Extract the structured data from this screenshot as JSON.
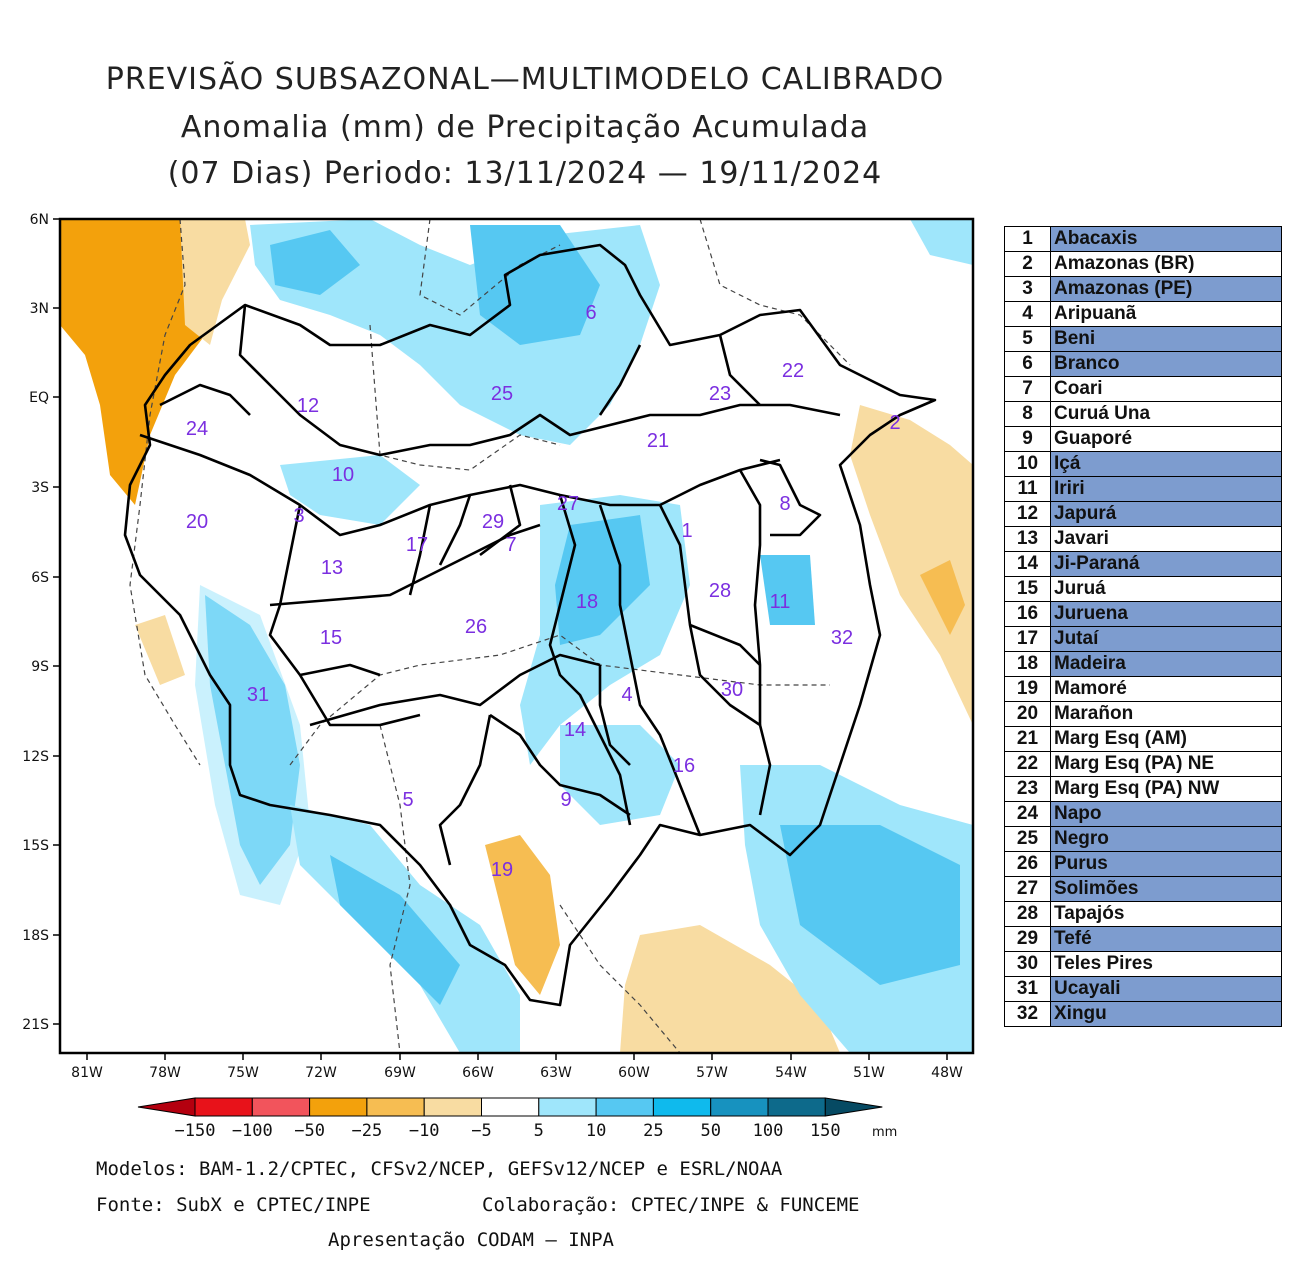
{
  "title": {
    "line1": "PREVISÃO SUBSAZONAL—MULTIMODELO CALIBRADO",
    "line2": "Anomalia (mm) de Precipitação Acumulada",
    "line3": "(07 Dias) Periodo: 13/11/2024 — 19/11/2024"
  },
  "axes": {
    "lat_labels": [
      "6N",
      "3N",
      "EQ",
      "3S",
      "6S",
      "9S",
      "12S",
      "15S",
      "18S",
      "21S"
    ],
    "lon_labels": [
      "81W",
      "78W",
      "75W",
      "72W",
      "69W",
      "66W",
      "63W",
      "60W",
      "57W",
      "54W",
      "51W",
      "48W"
    ]
  },
  "basin_numbers": [
    "1",
    "2",
    "3",
    "4",
    "5",
    "6",
    "7",
    "8",
    "9",
    "10",
    "11",
    "12",
    "13",
    "14",
    "15",
    "16",
    "17",
    "18",
    "19",
    "20",
    "21",
    "22",
    "23",
    "24",
    "25",
    "26",
    "27",
    "28",
    "29",
    "30",
    "31",
    "32"
  ],
  "basins": [
    {
      "n": "1",
      "name": "Abacaxis",
      "highlight": true
    },
    {
      "n": "2",
      "name": "Amazonas (BR)",
      "highlight": false
    },
    {
      "n": "3",
      "name": "Amazonas (PE)",
      "highlight": true
    },
    {
      "n": "4",
      "name": "Aripuanã",
      "highlight": false
    },
    {
      "n": "5",
      "name": "Beni",
      "highlight": true
    },
    {
      "n": "6",
      "name": "Branco",
      "highlight": true
    },
    {
      "n": "7",
      "name": "Coari",
      "highlight": false
    },
    {
      "n": "8",
      "name": "Curuá Una",
      "highlight": false
    },
    {
      "n": "9",
      "name": "Guaporé",
      "highlight": false
    },
    {
      "n": "10",
      "name": "Içá",
      "highlight": true
    },
    {
      "n": "11",
      "name": "Iriri",
      "highlight": true
    },
    {
      "n": "12",
      "name": "Japurá",
      "highlight": true
    },
    {
      "n": "13",
      "name": "Javari",
      "highlight": false
    },
    {
      "n": "14",
      "name": "Ji-Paraná",
      "highlight": true
    },
    {
      "n": "15",
      "name": "Juruá",
      "highlight": false
    },
    {
      "n": "16",
      "name": "Juruena",
      "highlight": true
    },
    {
      "n": "17",
      "name": "Jutaí",
      "highlight": true
    },
    {
      "n": "18",
      "name": "Madeira",
      "highlight": true
    },
    {
      "n": "19",
      "name": "Mamoré",
      "highlight": false
    },
    {
      "n": "20",
      "name": "Marañon",
      "highlight": false
    },
    {
      "n": "21",
      "name": "Marg Esq (AM)",
      "highlight": false
    },
    {
      "n": "22",
      "name": "Marg Esq (PA) NE",
      "highlight": false
    },
    {
      "n": "23",
      "name": "Marg Esq (PA) NW",
      "highlight": false
    },
    {
      "n": "24",
      "name": "Napo",
      "highlight": true
    },
    {
      "n": "25",
      "name": "Negro",
      "highlight": true
    },
    {
      "n": "26",
      "name": "Purus",
      "highlight": true
    },
    {
      "n": "27",
      "name": "Solimões",
      "highlight": true
    },
    {
      "n": "28",
      "name": "Tapajós",
      "highlight": false
    },
    {
      "n": "29",
      "name": "Tefé",
      "highlight": true
    },
    {
      "n": "30",
      "name": "Teles Pires",
      "highlight": false
    },
    {
      "n": "31",
      "name": "Ucayali",
      "highlight": true
    },
    {
      "n": "32",
      "name": "Xingu",
      "highlight": true
    }
  ],
  "colorbar": {
    "labels": [
      "-150",
      "-100",
      "-50",
      "-25",
      "-10",
      "-5",
      "5",
      "10",
      "25",
      "50",
      "100",
      "150"
    ],
    "unit": "mm",
    "colors": [
      "#b4000f",
      "#e8121a",
      "#f2545c",
      "#f3a10c",
      "#f6bd52",
      "#f8dca2",
      "#ffffff",
      "#9fe6fb",
      "#56c8f2",
      "#0fbaed",
      "#1792bf",
      "#0d6a8b",
      "#064a63"
    ]
  },
  "footer": {
    "models": "Modelos: BAM-1.2/CPTEC, CFSv2/NCEP, GEFSv12/NCEP e ESRL/NOAA",
    "source": "Fonte: SubX e CPTEC/INPE",
    "collab": "Colaboração: CPTEC/INPE & FUNCEME",
    "presentation": "Apresentação CODAM — INPA"
  }
}
